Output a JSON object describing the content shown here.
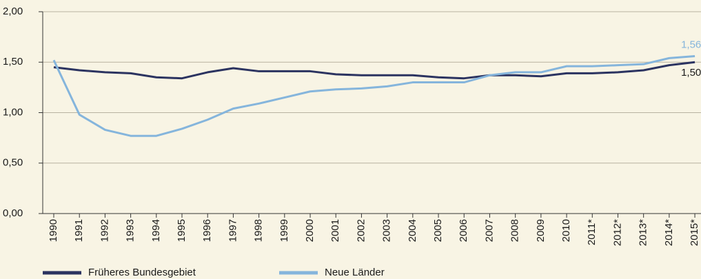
{
  "chart_data": {
    "type": "line",
    "x": [
      1990,
      1991,
      1992,
      1993,
      1994,
      1995,
      1996,
      1997,
      1998,
      1999,
      2000,
      2001,
      2002,
      2003,
      2004,
      2005,
      2006,
      2007,
      2008,
      2009,
      2010,
      2011,
      2012,
      2013,
      2014,
      2015
    ],
    "series": [
      {
        "name": "Früheres Bundesgebiet",
        "color": "#2b3360",
        "values": [
          1.45,
          1.42,
          1.4,
          1.39,
          1.35,
          1.34,
          1.4,
          1.44,
          1.41,
          1.41,
          1.41,
          1.38,
          1.37,
          1.37,
          1.37,
          1.35,
          1.34,
          1.37,
          1.37,
          1.36,
          1.39,
          1.39,
          1.4,
          1.42,
          1.47,
          1.5
        ],
        "value_labels": [
          null,
          null,
          null,
          null,
          null,
          null,
          null,
          null,
          null,
          null,
          null,
          null,
          null,
          null,
          null,
          null,
          null,
          null,
          null,
          null,
          null,
          null,
          null,
          null,
          null,
          "1,50"
        ]
      },
      {
        "name": "Neue Länder",
        "color": "#85b5dc",
        "values": [
          1.52,
          0.98,
          0.83,
          0.77,
          0.77,
          0.84,
          0.93,
          1.04,
          1.09,
          1.15,
          1.21,
          1.23,
          1.24,
          1.26,
          1.3,
          1.3,
          1.3,
          1.37,
          1.4,
          1.4,
          1.46,
          1.46,
          1.47,
          1.48,
          1.54,
          1.56
        ],
        "value_labels": [
          null,
          null,
          null,
          null,
          null,
          null,
          null,
          null,
          null,
          null,
          null,
          null,
          null,
          null,
          null,
          null,
          null,
          null,
          null,
          null,
          null,
          null,
          null,
          null,
          null,
          "1,56"
        ]
      }
    ],
    "xlim": [
      1989.57,
      2015.24
    ],
    "xticks": [
      1990,
      1991,
      1992,
      1993,
      1994,
      1995,
      1996,
      1997,
      1998,
      1999,
      2000,
      2001,
      2002,
      2003,
      2004,
      2005,
      2006,
      2007,
      2008,
      2009,
      2010,
      {
        "value": 2011,
        "label": "2011*"
      },
      {
        "value": 2012,
        "label": "2012*"
      },
      {
        "value": 2013,
        "label": "2013*"
      },
      {
        "value": 2014,
        "label": "2014*"
      },
      {
        "value": 2015,
        "label": "2015*"
      }
    ],
    "ylim": [
      0,
      2
    ],
    "yticks": [
      {
        "value": 0,
        "label": "0,00"
      },
      {
        "value": 0.5,
        "label": "0,50"
      },
      {
        "value": 1,
        "label": "1,00"
      },
      {
        "value": 1.5,
        "label": "1,50"
      },
      {
        "value": 2,
        "label": "2,00"
      }
    ],
    "grid": true,
    "legend": "bottom"
  }
}
